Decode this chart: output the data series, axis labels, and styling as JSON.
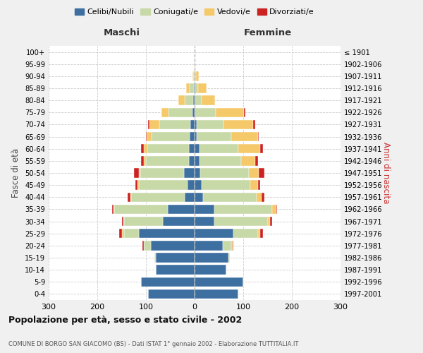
{
  "age_groups": [
    "0-4",
    "5-9",
    "10-14",
    "15-19",
    "20-24",
    "25-29",
    "30-34",
    "35-39",
    "40-44",
    "45-49",
    "50-54",
    "55-59",
    "60-64",
    "65-69",
    "70-74",
    "75-79",
    "80-84",
    "85-89",
    "90-94",
    "95-99",
    "100+"
  ],
  "birth_years": [
    "1997-2001",
    "1992-1996",
    "1987-1991",
    "1982-1986",
    "1977-1981",
    "1972-1976",
    "1967-1971",
    "1962-1966",
    "1957-1961",
    "1952-1956",
    "1947-1951",
    "1942-1946",
    "1937-1941",
    "1932-1936",
    "1927-1931",
    "1922-1926",
    "1917-1921",
    "1912-1916",
    "1907-1911",
    "1902-1906",
    "≤ 1901"
  ],
  "maschi_celibi": [
    95,
    110,
    80,
    80,
    90,
    115,
    65,
    55,
    20,
    15,
    22,
    12,
    12,
    10,
    8,
    5,
    3,
    2,
    0,
    0,
    0
  ],
  "maschi_coniugati": [
    0,
    0,
    0,
    2,
    15,
    30,
    80,
    110,
    110,
    100,
    90,
    88,
    85,
    78,
    65,
    48,
    18,
    8,
    3,
    0,
    0
  ],
  "maschi_vedovi": [
    0,
    0,
    0,
    0,
    0,
    5,
    2,
    2,
    2,
    2,
    3,
    5,
    8,
    10,
    20,
    15,
    12,
    8,
    2,
    0,
    0
  ],
  "maschi_divorziati": [
    0,
    0,
    0,
    0,
    2,
    5,
    2,
    2,
    5,
    5,
    10,
    5,
    5,
    2,
    2,
    0,
    0,
    0,
    0,
    0,
    0
  ],
  "femmine_nubili": [
    90,
    100,
    65,
    70,
    58,
    80,
    40,
    40,
    18,
    15,
    12,
    10,
    10,
    5,
    5,
    2,
    2,
    2,
    0,
    0,
    0
  ],
  "femmine_coniugate": [
    0,
    0,
    0,
    3,
    18,
    50,
    110,
    120,
    110,
    100,
    100,
    85,
    80,
    70,
    55,
    42,
    12,
    5,
    3,
    0,
    0
  ],
  "femmine_vedove": [
    0,
    0,
    0,
    0,
    2,
    5,
    5,
    8,
    10,
    15,
    20,
    30,
    45,
    55,
    60,
    58,
    28,
    18,
    5,
    2,
    0
  ],
  "femmine_divorziate": [
    0,
    0,
    0,
    0,
    2,
    5,
    5,
    2,
    5,
    5,
    12,
    5,
    5,
    2,
    5,
    2,
    0,
    0,
    0,
    0,
    0
  ],
  "color_celibi": "#3d6fa0",
  "color_coniugati": "#c8d9a8",
  "color_vedovi": "#f5c96a",
  "color_divorziati": "#cc2222",
  "xlim": 300,
  "title": "Popolazione per età, sesso e stato civile - 2002",
  "subtitle": "COMUNE DI BORGO SAN GIACOMO (BS) - Dati ISTAT 1° gennaio 2002 - Elaborazione TUTTITALIA.IT",
  "header_left": "Maschi",
  "header_right": "Femmine",
  "ylabel_left": "Fasce di età",
  "ylabel_right": "Anni di nascita",
  "legend_labels": [
    "Celibi/Nubili",
    "Coniugati/e",
    "Vedovi/e",
    "Divorziati/e"
  ],
  "bg_color": "#f0f0f0",
  "plot_bg": "#ffffff",
  "xticks": [
    -300,
    -200,
    -100,
    0,
    100,
    200,
    300
  ],
  "xtick_labels": [
    "300",
    "200",
    "100",
    "0",
    "100",
    "200",
    "300"
  ]
}
